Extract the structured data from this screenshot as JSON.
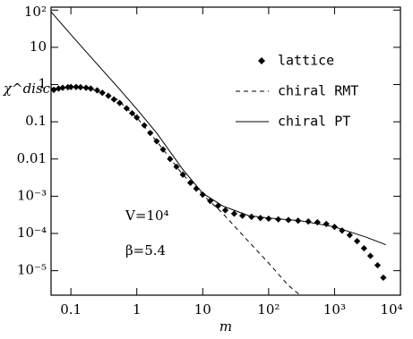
{
  "chart_data": {
    "type": "scatter",
    "x_label": "m",
    "y_label": "χ^disc",
    "annotations": [
      "V=10⁴",
      "β=5.4"
    ],
    "log_x": true,
    "log_y": true,
    "xlim": [
      0.05,
      10000
    ],
    "ylim": [
      2.2e-06,
      120
    ],
    "xticks": [
      0.1,
      1,
      10,
      {
        "value": 100,
        "label": "10²"
      },
      {
        "value": 1000,
        "label": "10³"
      },
      {
        "value": 10000,
        "label": "10⁴"
      }
    ],
    "yticks": [
      {
        "value": 100,
        "label": "10²"
      },
      10,
      1,
      0.1,
      0.01,
      {
        "value": 0.001,
        "label": "10⁻³"
      },
      {
        "value": 0.0001,
        "label": "10⁻⁴"
      },
      {
        "value": 1e-05,
        "label": "10⁻⁵"
      }
    ],
    "legend": "upper right",
    "series": [
      {
        "name": "lattice",
        "style": "marker",
        "color": "#000",
        "x": [
          0.055,
          0.065,
          0.075,
          0.09,
          0.1,
          0.12,
          0.14,
          0.17,
          0.2,
          0.25,
          0.3,
          0.37,
          0.45,
          0.55,
          0.7,
          0.85,
          1,
          1.3,
          1.6,
          2,
          2.5,
          3.2,
          4,
          5,
          6.5,
          8,
          10,
          13,
          17,
          22,
          30,
          40,
          55,
          75,
          100,
          140,
          200,
          280,
          400,
          550,
          750,
          1000,
          1300,
          1700,
          2200,
          2800,
          3500,
          4500,
          5500
        ],
        "values": [
          0.72,
          0.78,
          0.82,
          0.85,
          0.86,
          0.86,
          0.85,
          0.82,
          0.78,
          0.7,
          0.6,
          0.5,
          0.4,
          0.32,
          0.23,
          0.17,
          0.13,
          0.08,
          0.05,
          0.03,
          0.018,
          0.01,
          0.0062,
          0.0038,
          0.0023,
          0.0016,
          0.0011,
          0.00075,
          0.00055,
          0.00042,
          0.00034,
          0.0003,
          0.00028,
          0.00026,
          0.00025,
          0.00024,
          0.00023,
          0.00022,
          0.00021,
          0.0002,
          0.00018,
          0.00015,
          0.00012,
          9e-05,
          6.2e-05,
          4e-05,
          2.5e-05,
          1.4e-05,
          6.5e-06
        ]
      },
      {
        "name": "chiral RMT",
        "style": "dashed",
        "color": "#000",
        "x": [
          0.05,
          0.1,
          0.2,
          0.5,
          1,
          2,
          5,
          10,
          20,
          50,
          100,
          200,
          300
        ],
        "values": [
          0.8,
          0.86,
          0.78,
          0.4,
          0.13,
          0.03,
          0.0038,
          0.0011,
          0.00035,
          6e-05,
          1.6e-05,
          4e-06,
          2.2e-06
        ]
      },
      {
        "name": "chiral PT",
        "style": "solid",
        "color": "#000",
        "x": [
          0.05,
          0.1,
          0.2,
          0.5,
          1,
          2,
          5,
          10,
          20,
          50,
          100,
          300,
          1000,
          3000,
          6000
        ],
        "values": [
          90,
          22,
          5.5,
          0.9,
          0.22,
          0.05,
          0.0052,
          0.0012,
          0.00055,
          0.0003,
          0.00026,
          0.00022,
          0.00015,
          8e-05,
          5e-05
        ]
      }
    ]
  }
}
